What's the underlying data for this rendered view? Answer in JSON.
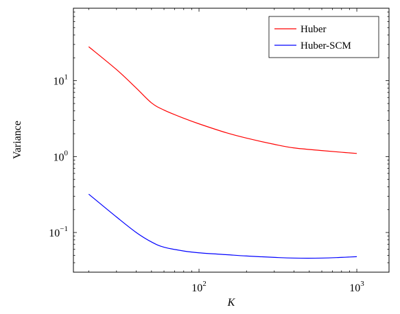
{
  "chart_data": {
    "type": "line",
    "xlabel": "K",
    "ylabel": "Variance",
    "xscale": "log",
    "yscale": "log",
    "xlim": [
      16,
      1600
    ],
    "ylim": [
      0.03,
      90
    ],
    "x_ticks": [
      {
        "value": 100,
        "base": "10",
        "exp": "2"
      },
      {
        "value": 1000,
        "base": "10",
        "exp": "3"
      }
    ],
    "y_ticks": [
      {
        "value": 0.1,
        "base": "10",
        "exp": "−1"
      },
      {
        "value": 1,
        "base": "10",
        "exp": "0"
      },
      {
        "value": 10,
        "base": "10",
        "exp": "1"
      }
    ],
    "legend_position": "top-right",
    "grid": false,
    "series": [
      {
        "name": "Huber",
        "color": "#ff0000",
        "x": [
          20,
          30,
          40,
          50,
          60,
          80,
          100,
          150,
          200,
          300,
          400,
          600,
          800,
          1000
        ],
        "y": [
          28,
          14,
          8,
          5.1,
          4.1,
          3.2,
          2.7,
          2.05,
          1.75,
          1.45,
          1.3,
          1.2,
          1.14,
          1.1
        ]
      },
      {
        "name": "Huber-SCM",
        "color": "#0000ff",
        "x": [
          20,
          30,
          40,
          50,
          60,
          80,
          100,
          150,
          200,
          300,
          400,
          600,
          800,
          1000
        ],
        "y": [
          0.32,
          0.16,
          0.1,
          0.075,
          0.064,
          0.057,
          0.054,
          0.051,
          0.049,
          0.047,
          0.046,
          0.046,
          0.047,
          0.048
        ]
      }
    ]
  }
}
